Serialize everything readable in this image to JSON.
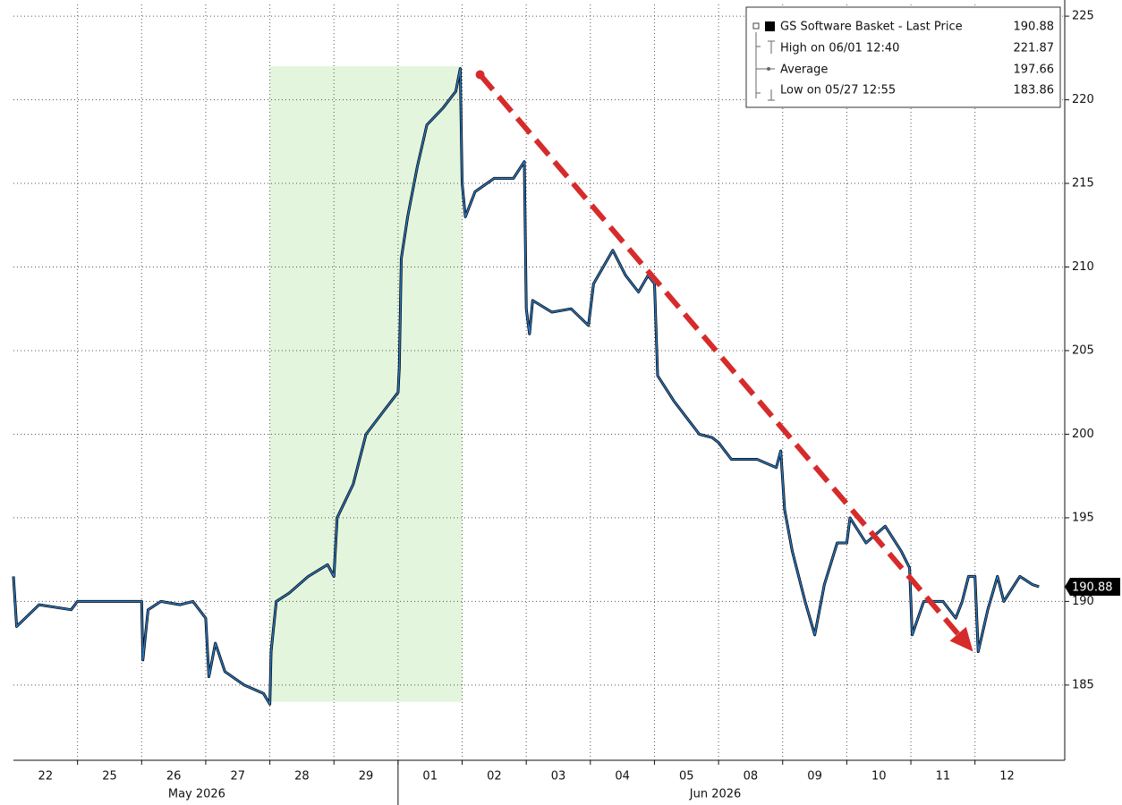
{
  "chart_data": {
    "type": "line",
    "x": [
      0,
      0.05,
      0.4,
      0.9,
      1.0,
      2.0,
      2.02,
      2.1,
      2.3,
      2.6,
      2.8,
      3.0,
      3.05,
      3.15,
      3.3,
      3.6,
      3.9,
      4.0,
      4.02,
      4.1,
      4.3,
      4.6,
      4.9,
      5.0,
      5.05,
      5.3,
      5.5,
      5.8,
      6.0,
      6.02,
      6.05,
      6.15,
      6.3,
      6.45,
      6.7,
      6.9,
      6.97,
      7.0,
      7.05,
      7.2,
      7.5,
      7.8,
      7.97,
      8.0,
      8.05,
      8.1,
      8.4,
      8.7,
      8.97,
      9.05,
      9.35,
      9.55,
      9.75,
      9.9,
      10.0,
      10.05,
      10.3,
      10.5,
      10.7,
      10.9,
      11.0,
      11.2,
      11.6,
      11.9,
      11.97,
      12.03,
      12.15,
      12.35,
      12.5,
      12.65,
      12.85,
      13.0,
      13.05,
      13.3,
      13.6,
      13.85,
      13.98,
      14.02,
      14.2,
      14.5,
      14.7,
      14.8,
      14.9,
      15.0,
      15.05,
      15.2,
      15.35,
      15.45,
      15.7,
      15.9,
      16.0
    ],
    "series": [
      {
        "name": "GS Software Basket",
        "color": "#2a78c2",
        "values": [
          191.5,
          188.5,
          189.8,
          189.5,
          190,
          190,
          186.5,
          189.5,
          190,
          189.8,
          190,
          189,
          185.5,
          187.5,
          185.8,
          185,
          184.5,
          183.86,
          187,
          190,
          190.5,
          191.5,
          192.2,
          191.5,
          195,
          197,
          200,
          201.5,
          202.5,
          204,
          210.5,
          213,
          216,
          218.5,
          219.5,
          220.5,
          221.87,
          215,
          213,
          214.5,
          215.3,
          215.3,
          216.3,
          207.5,
          206,
          208,
          207.3,
          207.5,
          206.5,
          209,
          211,
          209.5,
          208.5,
          209.5,
          209,
          203.5,
          202,
          201,
          200,
          199.8,
          199.5,
          198.5,
          198.5,
          198,
          199,
          195.5,
          193,
          190,
          188,
          191,
          193.5,
          193.5,
          195,
          193.5,
          194.5,
          193,
          192,
          188,
          190,
          190,
          189,
          190,
          191.5,
          191.5,
          187,
          189.5,
          191.5,
          190,
          191.5,
          191,
          190.88
        ]
      }
    ],
    "xlim": [
      0,
      16.4
    ],
    "xticks": [
      {
        "value": 0.5,
        "label": "22"
      },
      {
        "value": 1.5,
        "label": "25"
      },
      {
        "value": 2.5,
        "label": "26"
      },
      {
        "value": 3.5,
        "label": "27"
      },
      {
        "value": 4.5,
        "label": "28"
      },
      {
        "value": 5.5,
        "label": "29"
      },
      {
        "value": 6.5,
        "label": "01"
      },
      {
        "value": 7.5,
        "label": "02"
      },
      {
        "value": 8.5,
        "label": "03"
      },
      {
        "value": 9.5,
        "label": "04"
      },
      {
        "value": 10.5,
        "label": "05"
      },
      {
        "value": 11.5,
        "label": "08"
      },
      {
        "value": 12.5,
        "label": "09"
      },
      {
        "value": 13.5,
        "label": "10"
      },
      {
        "value": 14.5,
        "label": "11"
      },
      {
        "value": 15.5,
        "label": "12"
      }
    ],
    "xgrid": [
      1,
      2,
      3,
      4,
      5,
      6,
      7,
      8,
      9,
      10,
      11,
      12,
      13,
      14,
      15
    ],
    "month_labels": [
      {
        "value": 2.86,
        "label": "May 2026"
      },
      {
        "value": 10.95,
        "label": "Jun 2026"
      }
    ],
    "month_divider": 6,
    "ylim": [
      180.5,
      225.7
    ],
    "yticks": [
      185,
      190,
      195,
      200,
      205,
      210,
      215,
      220,
      225
    ],
    "grid": true,
    "highlight": {
      "x": [
        4,
        7
      ],
      "y": [
        184,
        222
      ],
      "color": "#e3f5dc"
    },
    "arrow": {
      "from": [
        7.28,
        221.5
      ],
      "to": [
        14.97,
        187
      ],
      "color": "#d62b2b"
    },
    "legend": [
      {
        "label": "GS Software Basket - Last Price",
        "value": 190.88
      },
      {
        "label": "High on 06/01 12:40",
        "value": 221.87
      },
      {
        "label": "Average",
        "value": 197.66
      },
      {
        "label": "Low on 05/27 12:55",
        "value": 183.86
      }
    ]
  }
}
